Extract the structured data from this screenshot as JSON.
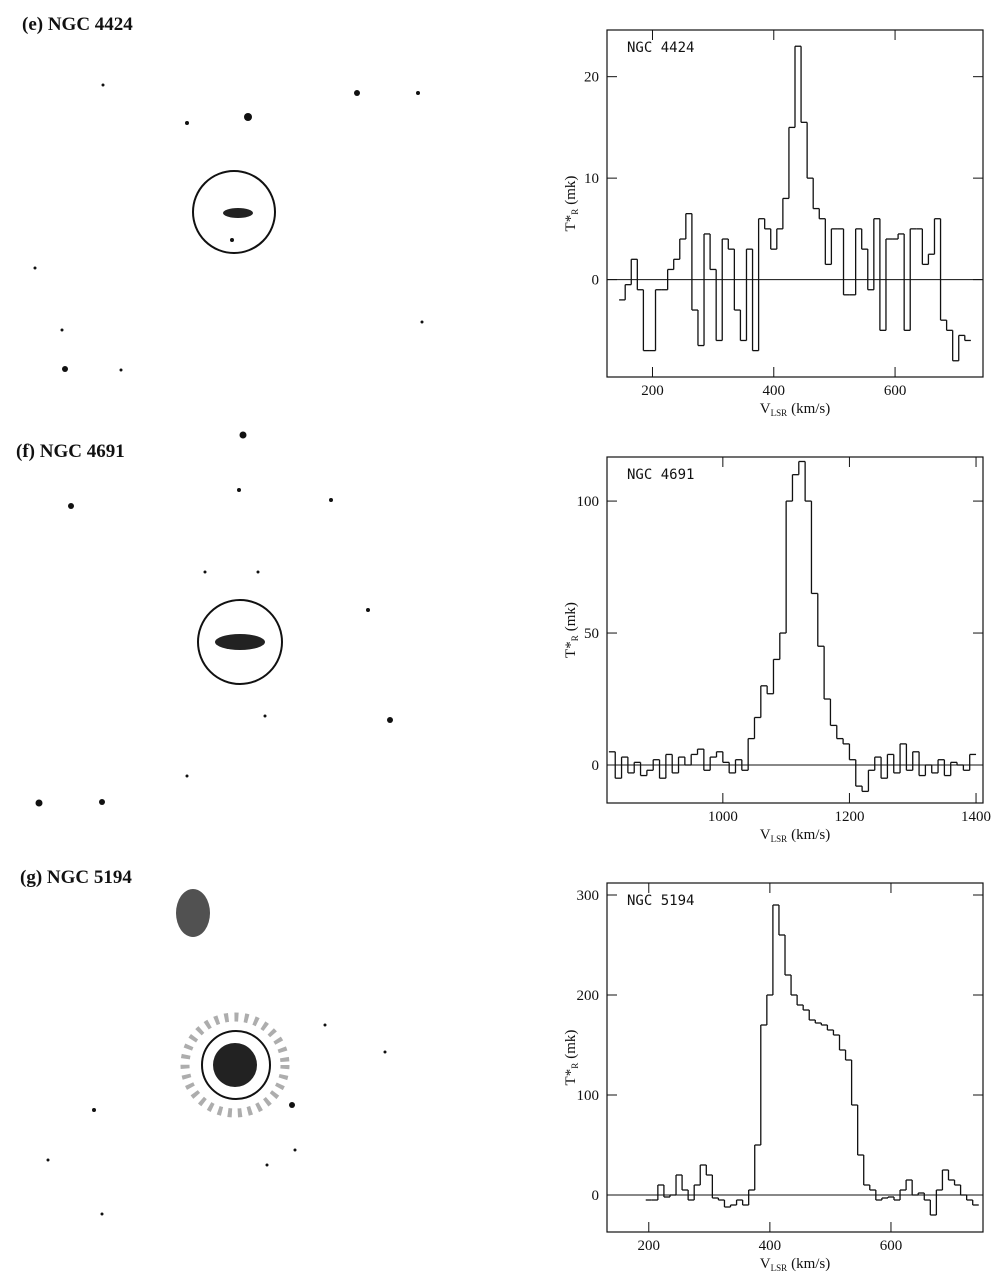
{
  "chart_data": [
    {
      "type": "step",
      "panel_label": "(e) NGC 4424",
      "title": "NGC 4424",
      "x_label": [
        "V",
        "LSR",
        "(km/s)"
      ],
      "y_label": [
        "T*",
        "R",
        "(mk)"
      ],
      "x": [
        150,
        160,
        170,
        180,
        190,
        200,
        210,
        220,
        230,
        240,
        250,
        260,
        270,
        280,
        290,
        300,
        310,
        320,
        330,
        340,
        350,
        360,
        370,
        380,
        390,
        400,
        410,
        420,
        430,
        440,
        450,
        460,
        470,
        480,
        490,
        500,
        510,
        520,
        530,
        540,
        550,
        560,
        570,
        580,
        590,
        600,
        610,
        620,
        630,
        640,
        650,
        660,
        670,
        680,
        690,
        700,
        710,
        720
      ],
      "values": [
        -2,
        -0.5,
        2,
        -1,
        -7,
        -7,
        -1,
        -1,
        1,
        2,
        4,
        6.5,
        -3,
        -6.5,
        4.5,
        1,
        -6,
        4,
        3,
        -3,
        -6,
        3,
        -7,
        6,
        5,
        3,
        5,
        8,
        15,
        23,
        15.5,
        10,
        7,
        6,
        1.5,
        5,
        5,
        -1.5,
        -1.5,
        5,
        3,
        -1,
        6,
        -5,
        4,
        4,
        4.5,
        -5,
        5,
        5,
        1.5,
        2.5,
        6,
        -4,
        -5,
        -8,
        -5.5,
        -6
      ],
      "xlim": [
        125,
        745
      ],
      "ylim": [
        -9.6,
        24.6
      ],
      "xticks": [
        200,
        400,
        600
      ],
      "yticks": [
        0,
        10,
        20
      ]
    },
    {
      "type": "step",
      "panel_label": "(f) NGC 4691",
      "title": "NGC 4691",
      "x_label": [
        "V",
        "LSR",
        "(km/s)"
      ],
      "y_label": [
        "T*",
        "R",
        "(mk)"
      ],
      "x": [
        825,
        835,
        845,
        855,
        865,
        875,
        885,
        895,
        905,
        915,
        925,
        935,
        945,
        955,
        965,
        975,
        985,
        995,
        1005,
        1015,
        1025,
        1035,
        1045,
        1055,
        1065,
        1075,
        1085,
        1095,
        1105,
        1115,
        1125,
        1135,
        1145,
        1155,
        1165,
        1175,
        1185,
        1195,
        1205,
        1215,
        1225,
        1235,
        1245,
        1255,
        1265,
        1275,
        1285,
        1295,
        1305,
        1315,
        1325,
        1335,
        1345,
        1355,
        1365,
        1375,
        1385,
        1395
      ],
      "values": [
        5,
        -5,
        3,
        -3,
        1,
        -4,
        -2,
        2,
        -5,
        4,
        -3,
        3,
        0,
        4,
        6,
        -2,
        3,
        5,
        1,
        -3,
        2,
        -2,
        10,
        18,
        30,
        27,
        40,
        50,
        100,
        110,
        115,
        100,
        65,
        45,
        25,
        15,
        10,
        8,
        2,
        -8,
        -10,
        -2,
        3,
        -5,
        4,
        -3,
        8,
        -2,
        5,
        -4,
        0,
        -3,
        2,
        -4,
        1,
        0,
        -2,
        4
      ],
      "xlim": [
        817,
        1411
      ],
      "ylim": [
        -14.4,
        116.7
      ],
      "xticks": [
        1000,
        1200,
        1400
      ],
      "yticks": [
        0,
        50,
        100
      ]
    },
    {
      "type": "step",
      "panel_label": "(g) NGC 5194",
      "title": "NGC 5194",
      "x_label": [
        "V",
        "LSR",
        "(km/s)"
      ],
      "y_label": [
        "T*",
        "R",
        "(mk)"
      ],
      "x": [
        200,
        210,
        220,
        230,
        240,
        250,
        260,
        270,
        280,
        290,
        300,
        310,
        320,
        330,
        340,
        350,
        360,
        370,
        380,
        390,
        400,
        410,
        420,
        430,
        440,
        450,
        460,
        470,
        480,
        490,
        500,
        510,
        520,
        530,
        540,
        550,
        560,
        570,
        580,
        590,
        600,
        610,
        620,
        630,
        640,
        650,
        660,
        670,
        680,
        690,
        700,
        710,
        720,
        730,
        740
      ],
      "values": [
        -5,
        -5,
        10,
        -2,
        0,
        20,
        5,
        -5,
        10,
        30,
        20,
        -3,
        -5,
        -12,
        -10,
        -5,
        -10,
        5,
        50,
        170,
        200,
        290,
        260,
        220,
        200,
        190,
        185,
        175,
        172,
        170,
        165,
        160,
        145,
        135,
        90,
        40,
        10,
        5,
        -5,
        -3,
        -2,
        -5,
        5,
        15,
        0,
        2,
        -5,
        -20,
        5,
        25,
        15,
        10,
        0,
        -5,
        -10
      ],
      "xlim": [
        131,
        752
      ],
      "ylim": [
        -37,
        312
      ],
      "xticks": [
        200,
        400,
        600
      ],
      "yticks": [
        0,
        100,
        200,
        300
      ]
    }
  ]
}
